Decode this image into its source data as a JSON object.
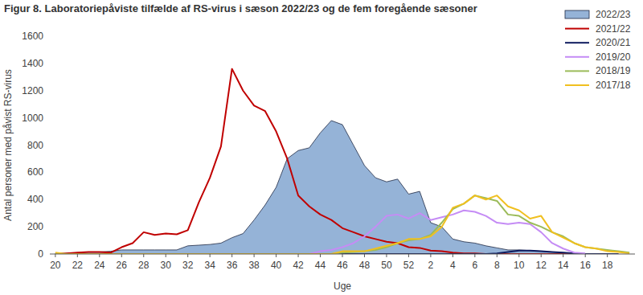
{
  "chart_data": {
    "type": "line",
    "title": "Figur 8. Laboratoriepåviste tilfælde af RS-virus i sæson 2022/23 og de fem foregående sæsoner",
    "x_label": "Uge",
    "y_label": "Antal personer med påvist RS-virus",
    "categories": [
      "20",
      null,
      "22",
      null,
      "24",
      null,
      "26",
      null,
      "28",
      null,
      "30",
      null,
      "32",
      null,
      "34",
      null,
      "36",
      null,
      "38",
      null,
      "40",
      null,
      "42",
      null,
      "44",
      null,
      "46",
      null,
      "48",
      null,
      "50",
      null,
      "52",
      null,
      "2",
      null,
      "4",
      null,
      "6",
      null,
      "8",
      null,
      "10",
      null,
      "12",
      null,
      "14",
      null,
      "16",
      null,
      "18",
      null,
      null
    ],
    "ylim": [
      0,
      1600
    ],
    "yticks": [
      0,
      200,
      400,
      600,
      800,
      1000,
      1200,
      1400,
      1600
    ],
    "grid": false,
    "legend": "upper right",
    "series": [
      {
        "name": "2022/23",
        "type": "area",
        "color": "#95b3d7",
        "values": [
          5,
          5,
          10,
          15,
          15,
          20,
          30,
          30,
          30,
          30,
          30,
          30,
          60,
          65,
          70,
          80,
          120,
          150,
          250,
          360,
          490,
          700,
          760,
          780,
          890,
          980,
          950,
          800,
          650,
          560,
          530,
          550,
          440,
          460,
          230,
          200,
          110,
          90,
          80,
          60,
          45,
          30,
          30,
          25,
          20,
          15,
          10,
          5,
          null,
          null,
          null,
          null,
          null
        ]
      },
      {
        "name": "2021/22",
        "type": "line",
        "color": "#c00000",
        "values": [
          0,
          5,
          10,
          15,
          15,
          10,
          50,
          80,
          160,
          140,
          150,
          145,
          175,
          380,
          560,
          790,
          1360,
          1200,
          1090,
          1050,
          900,
          700,
          430,
          350,
          290,
          250,
          190,
          160,
          130,
          110,
          90,
          80,
          50,
          45,
          25,
          20,
          10,
          5,
          5,
          0,
          0,
          0,
          0,
          0,
          0,
          0,
          0,
          0,
          0,
          0,
          0,
          0,
          null
        ]
      },
      {
        "name": "2020/21",
        "type": "line",
        "color": "#0d1a5e",
        "values": [
          0,
          0,
          0,
          0,
          0,
          0,
          0,
          0,
          0,
          0,
          0,
          0,
          0,
          0,
          0,
          0,
          0,
          0,
          0,
          0,
          0,
          0,
          0,
          0,
          0,
          0,
          0,
          0,
          0,
          0,
          0,
          0,
          0,
          0,
          0,
          0,
          0,
          0,
          0,
          0,
          5,
          15,
          25,
          25,
          20,
          15,
          10,
          5,
          0,
          0,
          0,
          0,
          null
        ]
      },
      {
        "name": "2019/20",
        "type": "line",
        "color": "#c58cf5",
        "values": [
          0,
          0,
          0,
          0,
          0,
          0,
          0,
          0,
          0,
          0,
          0,
          0,
          0,
          0,
          0,
          0,
          0,
          0,
          0,
          0,
          0,
          0,
          0,
          0,
          20,
          30,
          50,
          80,
          130,
          200,
          280,
          290,
          260,
          300,
          250,
          270,
          290,
          320,
          310,
          280,
          230,
          220,
          230,
          220,
          160,
          80,
          40,
          10,
          5,
          null,
          null,
          null,
          null
        ]
      },
      {
        "name": "2018/19",
        "type": "line",
        "color": "#9bbb59",
        "values": [
          0,
          0,
          0,
          0,
          0,
          0,
          0,
          0,
          0,
          0,
          0,
          0,
          0,
          0,
          0,
          0,
          0,
          0,
          0,
          0,
          0,
          0,
          0,
          0,
          0,
          0,
          10,
          15,
          20,
          30,
          50,
          80,
          100,
          110,
          140,
          230,
          330,
          370,
          430,
          410,
          390,
          290,
          280,
          230,
          200,
          160,
          130,
          80,
          50,
          40,
          30,
          20,
          10
        ]
      },
      {
        "name": "2017/18",
        "type": "line",
        "color": "#f0c020",
        "values": [
          10,
          0,
          0,
          0,
          0,
          0,
          0,
          0,
          0,
          0,
          0,
          0,
          0,
          0,
          0,
          0,
          0,
          0,
          0,
          0,
          0,
          0,
          0,
          0,
          0,
          0,
          20,
          20,
          20,
          40,
          60,
          80,
          110,
          110,
          130,
          200,
          340,
          370,
          430,
          400,
          430,
          350,
          320,
          260,
          280,
          160,
          120,
          80,
          50,
          40,
          20,
          15,
          5
        ]
      }
    ]
  }
}
